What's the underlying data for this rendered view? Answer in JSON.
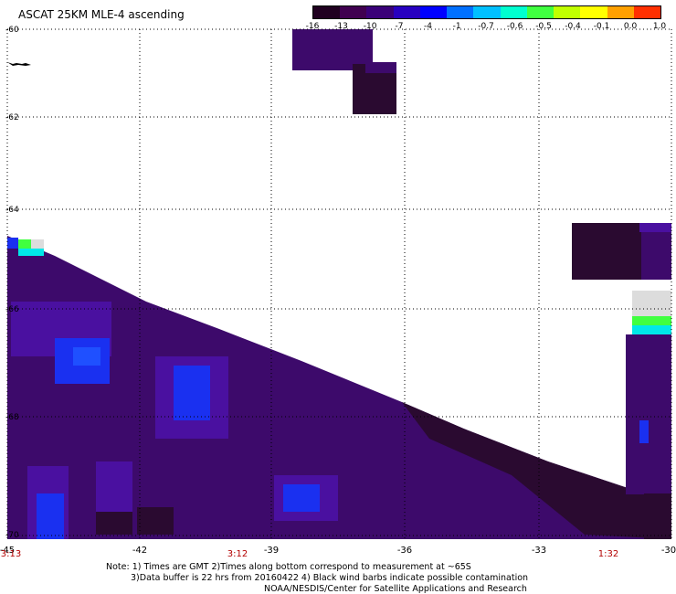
{
  "title": "ASCAT 25KM MLE-4 ascending",
  "colorbar": {
    "labels": [
      "-16",
      "-13",
      "-10",
      "-7",
      "-4",
      "-1",
      "-0.7",
      "-0.6",
      "-0.5",
      "-0.4",
      "-0.1",
      "0.0",
      "1.0"
    ],
    "colors": [
      "#200020",
      "#400050",
      "#3a0078",
      "#2800c0",
      "#0000ff",
      "#0070ff",
      "#00c0ff",
      "#00ffd0",
      "#40ff40",
      "#c0ff00",
      "#ffff00",
      "#ffa000",
      "#ff3000"
    ]
  },
  "axes": {
    "x_ticks": [
      "-45",
      "-42",
      "-39",
      "-36",
      "-33",
      "-30"
    ],
    "y_ticks": [
      "-60",
      "-62",
      "-64",
      "-66",
      "-68",
      "-70"
    ]
  },
  "times": [
    "3:13",
    "3:12",
    "1:32"
  ],
  "notes": [
    "Note: 1) Times are GMT 2)Times along bottom correspond to measurement at ~65S",
    "3)Data buffer is 22 hrs from 20160422 4) Black wind barbs indicate possible contamination",
    "NOAA/NESDIS/Center for Satellite Applications and Research"
  ],
  "palette": {
    "dark": "#2a0a30",
    "purple": "#3d0a6b",
    "violet": "#4a10a0",
    "blue": "#1a30f0",
    "missing": "#dcdcdc",
    "cyan": "#00e8e8",
    "green": "#40ff40"
  }
}
